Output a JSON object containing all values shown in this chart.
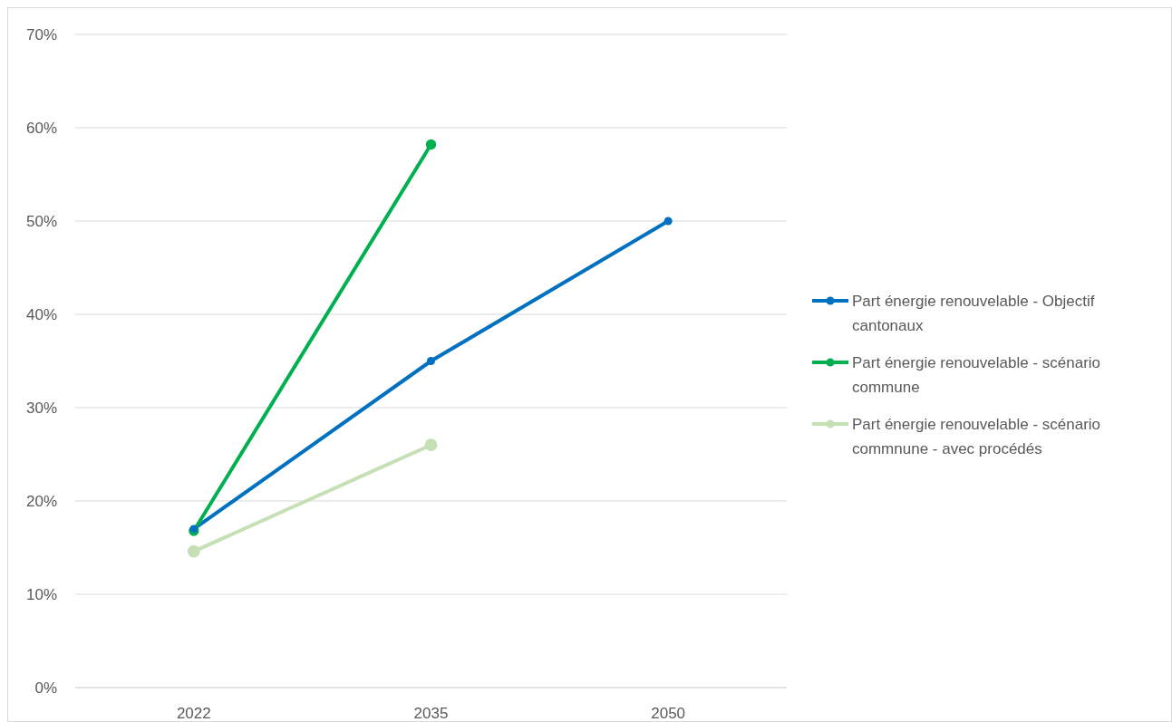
{
  "chart_data": {
    "type": "line",
    "categories": [
      "2022",
      "2035",
      "2050"
    ],
    "series": [
      {
        "name": "Part énergie renouvelable - Objectif cantonaux",
        "color": "#0070c0",
        "values": [
          17.0,
          35.0,
          50.0
        ]
      },
      {
        "name": "Part énergie renouvelable - scénario commune",
        "color": "#00b050",
        "values": [
          16.8,
          58.2,
          null
        ]
      },
      {
        "name": "Part énergie renouvelable - scénario commnune - avec procédés",
        "color": "#c5e0b4",
        "values": [
          14.6,
          26.0,
          null
        ]
      }
    ],
    "ylim": [
      0,
      70
    ],
    "yticks": [
      {
        "value": 0,
        "label": "0%"
      },
      {
        "value": 10,
        "label": "10%"
      },
      {
        "value": 20,
        "label": "20%"
      },
      {
        "value": 30,
        "label": "30%"
      },
      {
        "value": 40,
        "label": "40%"
      },
      {
        "value": 50,
        "label": "50%"
      },
      {
        "value": 60,
        "label": "60%"
      },
      {
        "value": 70,
        "label": "70%"
      }
    ],
    "grid": "y",
    "legend": "right",
    "marker": "circle",
    "line_style": "solid"
  }
}
